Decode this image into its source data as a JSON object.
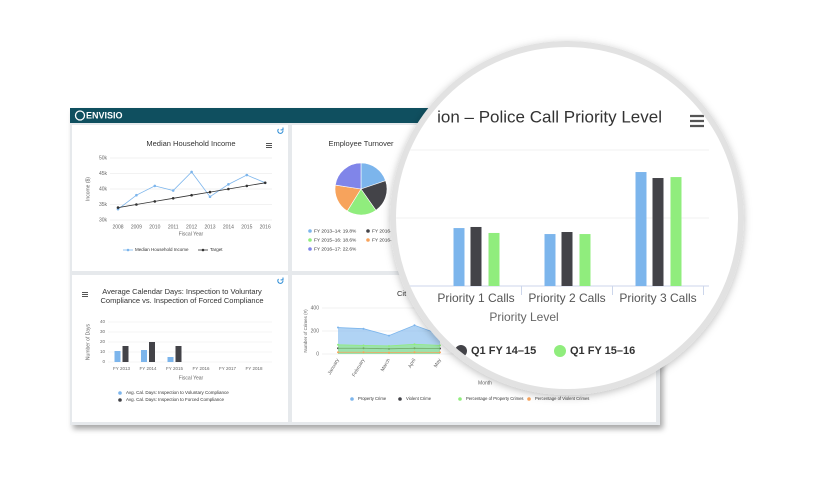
{
  "header": {
    "logo": "ENVISIO"
  },
  "chart_data": [
    {
      "type": "line",
      "title": "Median Household Income",
      "categories": [
        "2008",
        "2009",
        "2010",
        "2011",
        "2012",
        "2013",
        "2014",
        "2015",
        "2016"
      ],
      "xlabel": "Fiscal Year",
      "ylabel": "Income ($)",
      "ylim": [
        30000,
        50000
      ],
      "yticks": [
        {
          "value": 30000,
          "label": "30k"
        },
        {
          "value": 35000,
          "label": "35k"
        },
        {
          "value": 40000,
          "label": "40k"
        },
        {
          "value": 45000,
          "label": "45k"
        },
        {
          "value": 50000,
          "label": "50k"
        }
      ],
      "series": [
        {
          "name": "Median Household Income",
          "color": "#7cb5ec",
          "values": [
            33500,
            38000,
            41000,
            39500,
            45500,
            37500,
            41500,
            44500,
            42000
          ]
        },
        {
          "name": "Target",
          "color": "#333333",
          "values": [
            34000,
            35000,
            36000,
            37000,
            38000,
            39000,
            40000,
            41000,
            42000
          ]
        }
      ]
    },
    {
      "type": "pie",
      "title": "Employee Turnover",
      "labels": [
        "FY 2013–14: 19.8%",
        "FY 2016–",
        "FY 2015–16: 18.6%",
        "FY 2016–",
        "FY 2016–17: 22.6%"
      ],
      "values": [
        19.8,
        20.5,
        18.6,
        18.5,
        22.6
      ],
      "colors": [
        "#7cb5ec",
        "#434348",
        "#90ed7d",
        "#f7a35c",
        "#8085e9"
      ]
    },
    {
      "type": "bar",
      "title": "Average Calendar Days: Inspection to Voluntary Compliance vs. Inspection of Forced Compliance",
      "categories": [
        "FY 2013",
        "FY 2014",
        "FY 2015",
        "FY 2016",
        "FY 2017",
        "FY 2018"
      ],
      "xlabel": "Fiscal Year",
      "ylabel": "Number of Days",
      "ylim": [
        0,
        40
      ],
      "yticks": [
        0,
        10,
        20,
        30,
        40
      ],
      "series": [
        {
          "name": "Avg. Cal. Days: Inspection to Voluntary Compliance",
          "color": "#7cb5ec",
          "values": [
            11,
            12,
            5,
            null,
            null,
            null
          ]
        },
        {
          "name": "Avg. Cal. Days: Inspection to Forced Compliance",
          "color": "#434348",
          "values": [
            16,
            20,
            16,
            null,
            null,
            null
          ]
        }
      ]
    },
    {
      "type": "area",
      "title": "Cit",
      "categories": [
        "January",
        "February",
        "March",
        "April",
        "May"
      ],
      "xlabel": "Month",
      "ylabel": "Number of Crimes (#)",
      "ylim": [
        0,
        400
      ],
      "yticks": [
        0,
        200,
        400
      ],
      "series": [
        {
          "name": "Property Crime",
          "color": "#7cb5ec",
          "kind": "area",
          "values": [
            230,
            220,
            160,
            250,
            170
          ]
        },
        {
          "name": "Violent Crime",
          "color": "#434348",
          "kind": "line",
          "values": [
            50,
            50,
            45,
            50,
            48
          ]
        },
        {
          "name": "Percentage of Property Crimes",
          "color": "#90ed7d",
          "kind": "area",
          "values": [
            80,
            75,
            70,
            85,
            75
          ]
        },
        {
          "name": "Percentage of Violent Crimes",
          "color": "#f7a35c",
          "kind": "line",
          "values": [
            15,
            15,
            12,
            15,
            14
          ]
        }
      ]
    },
    {
      "type": "bar",
      "title": "ion – Police Call Priority Level",
      "categories": [
        "Priority 1 Calls",
        "Priority 2 Calls",
        "Priority 3 Calls"
      ],
      "xlabel": "Priority Level",
      "ylim": [
        0,
        1000
      ],
      "yticks": [
        0,
        500,
        1000
      ],
      "series": [
        {
          "color": "#7cb5ec",
          "values": [
            426,
            382,
            838
          ]
        },
        {
          "name": "Q1 FY 14–15",
          "color": "#434348",
          "values": [
            434,
            397,
            794
          ]
        },
        {
          "name": "Q1 FY 15–16",
          "color": "#90ed7d",
          "values": [
            390,
            382,
            801
          ]
        }
      ]
    }
  ]
}
